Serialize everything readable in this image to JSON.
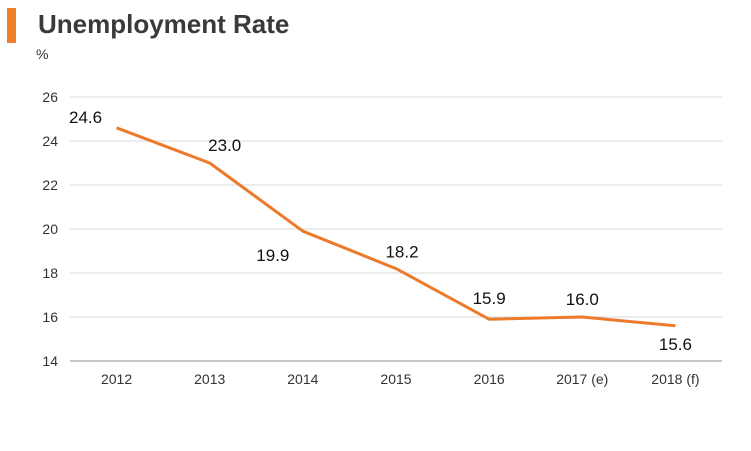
{
  "header": {
    "title": "Unemployment Rate",
    "unit": "%"
  },
  "colors": {
    "accent": "#f07f2a",
    "line": "#ec7a2b",
    "grid": "#d9d9d9",
    "axis": "#8c8c8c"
  },
  "chart_data": {
    "type": "line",
    "title": "Unemployment Rate",
    "xlabel": "",
    "ylabel": "%",
    "categories": [
      "2012",
      "2013",
      "2014",
      "2015",
      "2016",
      "2017 (e)",
      "2018 (f)"
    ],
    "series": [
      {
        "values": [
          24.6,
          23.0,
          19.9,
          18.2,
          15.9,
          16.0,
          15.6
        ],
        "labels": [
          "24.6",
          "23.0",
          "19.9",
          "18.2",
          "15.9",
          "16.0",
          "15.6"
        ]
      }
    ],
    "ylim": [
      14,
      26
    ],
    "yticks": [
      "14",
      "16",
      "18",
      "20",
      "22",
      "24",
      "26"
    ],
    "grid": true,
    "legend": "none"
  }
}
